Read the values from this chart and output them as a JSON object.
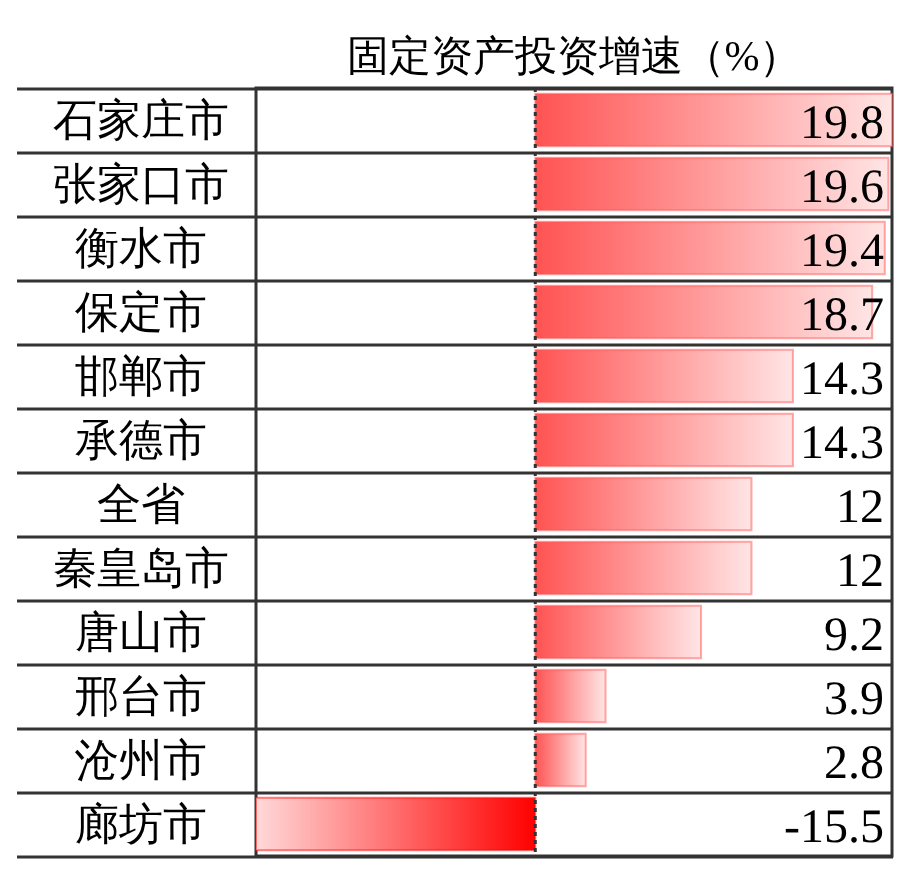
{
  "chart_data": {
    "type": "bar",
    "orientation": "horizontal",
    "title": "固定资产投资增速（%）",
    "categories": [
      "石家庄市",
      "张家口市",
      "衡水市",
      "保定市",
      "邯郸市",
      "承德市",
      "全省",
      "秦皇岛市",
      "唐山市",
      "邢台市",
      "沧州市",
      "廊坊市"
    ],
    "values": [
      19.8,
      19.6,
      19.4,
      18.7,
      14.3,
      14.3,
      12,
      12,
      9.2,
      3.9,
      2.8,
      -15.5
    ],
    "colors": [
      "#ff5353",
      "#ff5353",
      "#ff5353",
      "#ff5353",
      "#ff5353",
      "#ff5353",
      "#ff5353",
      "#ff5353",
      "#ff5353",
      "#ff5353",
      "#ff5353",
      "#ff0000"
    ],
    "data_labels": true,
    "grid": "y",
    "tick_labels": "y",
    "ref_lines": [
      {
        "axis": "x",
        "value": 0,
        "line_style": "dotted",
        "color": "#333333"
      }
    ]
  }
}
